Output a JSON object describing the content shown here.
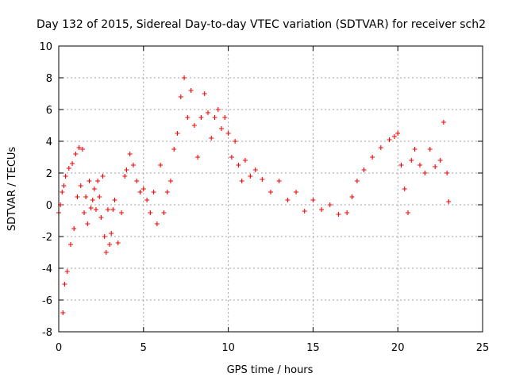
{
  "chart_data": {
    "type": "scatter",
    "title": "Day 132 of 2015, Sidereal Day-to-day VTEC variation (SDTVAR) for receiver sch2",
    "xlabel": "GPS time / hours",
    "ylabel": "SDTVAR / TECUs",
    "xlim": [
      0,
      25
    ],
    "ylim": [
      -8,
      10
    ],
    "xticks": [
      0,
      5,
      10,
      15,
      20,
      25
    ],
    "xtick_labels": [
      "0",
      "5",
      "10",
      "15",
      "20",
      "25"
    ],
    "yticks": [
      -8,
      -6,
      -4,
      -2,
      0,
      2,
      4,
      6,
      8,
      10
    ],
    "ytick_labels": [
      "-8",
      "-6",
      "-4",
      "-2",
      "0",
      "2",
      "4",
      "6",
      "8",
      "10"
    ],
    "grid": true,
    "marker": "+",
    "color": "#ff0000",
    "series": [
      {
        "name": "sch2",
        "x": [
          0.0,
          0.1,
          0.2,
          0.25,
          0.3,
          0.35,
          0.4,
          0.5,
          0.6,
          0.7,
          0.8,
          0.9,
          1.0,
          1.1,
          1.2,
          1.3,
          1.4,
          1.5,
          1.6,
          1.7,
          1.8,
          1.9,
          2.0,
          2.1,
          2.2,
          2.3,
          2.4,
          2.5,
          2.6,
          2.7,
          2.8,
          2.9,
          3.0,
          3.1,
          3.2,
          3.3,
          3.5,
          3.7,
          3.9,
          4.0,
          4.2,
          4.4,
          4.6,
          4.8,
          5.0,
          5.2,
          5.4,
          5.6,
          5.8,
          6.0,
          6.2,
          6.4,
          6.6,
          6.8,
          7.0,
          7.2,
          7.4,
          7.6,
          7.8,
          8.0,
          8.2,
          8.4,
          8.6,
          8.8,
          9.0,
          9.2,
          9.4,
          9.6,
          9.8,
          10.0,
          10.2,
          10.4,
          10.6,
          10.8,
          11.0,
          11.3,
          11.6,
          12.0,
          12.5,
          13.0,
          13.5,
          14.0,
          14.5,
          15.0,
          15.5,
          16.0,
          16.5,
          17.0,
          17.3,
          17.6,
          18.0,
          18.5,
          19.0,
          19.5,
          19.8,
          20.0,
          20.2,
          20.4,
          20.6,
          20.8,
          21.0,
          21.3,
          21.6,
          21.9,
          22.2,
          22.5,
          22.7,
          22.9,
          23.0
        ],
        "y": [
          -0.5,
          0.0,
          0.8,
          -6.8,
          1.2,
          -5.0,
          1.8,
          -4.2,
          2.3,
          -2.5,
          2.6,
          -1.5,
          3.2,
          0.5,
          3.6,
          1.2,
          3.5,
          -0.5,
          0.5,
          -1.2,
          1.5,
          -0.2,
          0.3,
          1.0,
          -0.3,
          1.5,
          0.5,
          -0.8,
          1.8,
          -2.0,
          -3.0,
          -0.3,
          -2.5,
          -1.8,
          -0.3,
          0.3,
          -2.4,
          -0.5,
          1.8,
          2.2,
          3.2,
          2.5,
          1.5,
          0.8,
          1.0,
          0.3,
          -0.5,
          0.8,
          -1.2,
          2.5,
          -0.5,
          0.8,
          1.5,
          3.5,
          4.5,
          6.8,
          8.0,
          5.5,
          7.2,
          5.0,
          3.0,
          5.5,
          7.0,
          5.8,
          4.2,
          5.5,
          6.0,
          4.8,
          5.5,
          4.5,
          3.0,
          4.0,
          2.5,
          1.5,
          2.8,
          1.8,
          2.2,
          1.6,
          0.8,
          1.5,
          0.3,
          0.8,
          -0.4,
          0.3,
          -0.3,
          0.0,
          -0.6,
          -0.5,
          0.5,
          1.5,
          2.2,
          3.0,
          3.6,
          4.1,
          4.3,
          4.5,
          2.5,
          1.0,
          -0.5,
          2.8,
          3.5,
          2.5,
          2.0,
          3.5,
          2.4,
          2.8,
          5.2,
          2.0,
          0.2
        ]
      }
    ]
  }
}
